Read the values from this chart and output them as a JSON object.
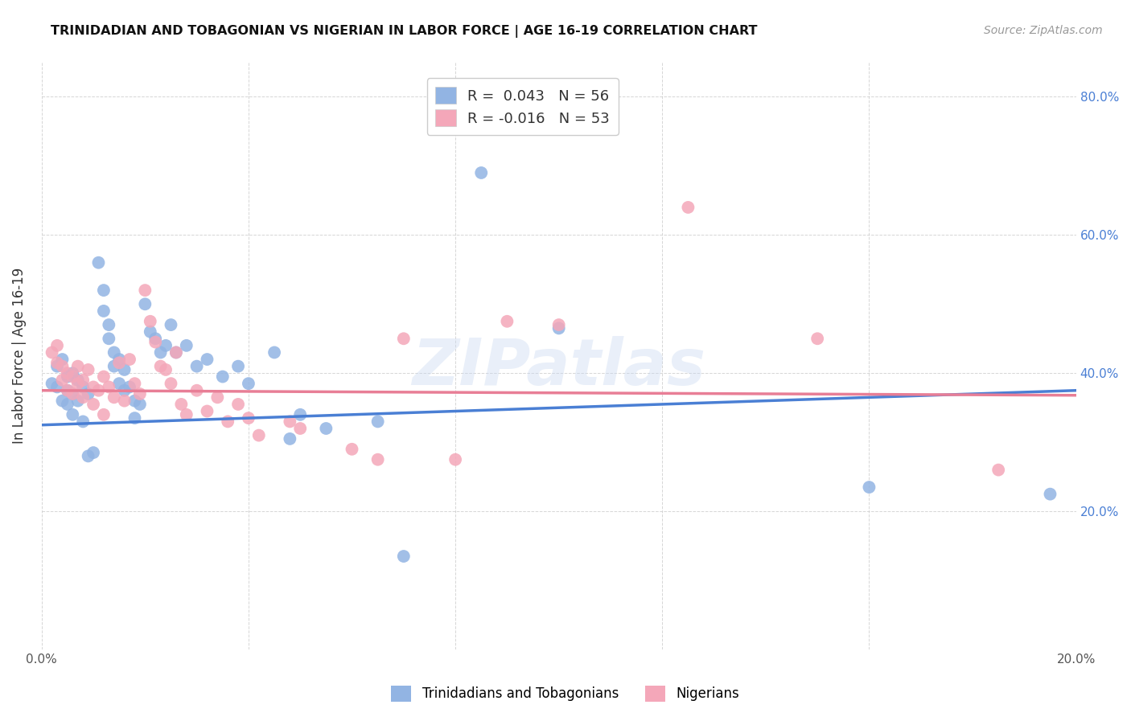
{
  "title": "TRINIDADIAN AND TOBAGONIAN VS NIGERIAN IN LABOR FORCE | AGE 16-19 CORRELATION CHART",
  "source": "Source: ZipAtlas.com",
  "ylabel": "In Labor Force | Age 16-19",
  "xlim": [
    0.0,
    0.2
  ],
  "ylim": [
    0.0,
    0.85
  ],
  "x_ticks": [
    0.0,
    0.04,
    0.08,
    0.12,
    0.16,
    0.2
  ],
  "x_tick_labels": [
    "0.0%",
    "",
    "",
    "",
    "",
    "20.0%"
  ],
  "y_ticks_right": [
    0.2,
    0.4,
    0.6,
    0.8
  ],
  "y_tick_labels_right": [
    "20.0%",
    "40.0%",
    "60.0%",
    "80.0%"
  ],
  "legend_entry1": "R =  0.043   N = 56",
  "legend_entry2": "R = -0.016   N = 53",
  "legend_label1": "Trinidadians and Tobagonians",
  "legend_label2": "Nigerians",
  "color_blue": "#92b4e3",
  "color_pink": "#f4a7b9",
  "line_color_blue": "#4a7fd4",
  "line_color_pink": "#e87e96",
  "watermark": "ZIPatlas",
  "blue_line": [
    [
      0.0,
      0.325
    ],
    [
      0.2,
      0.375
    ]
  ],
  "pink_line": [
    [
      0.0,
      0.375
    ],
    [
      0.2,
      0.368
    ]
  ],
  "blue_points": [
    [
      0.002,
      0.385
    ],
    [
      0.003,
      0.41
    ],
    [
      0.003,
      0.38
    ],
    [
      0.004,
      0.36
    ],
    [
      0.004,
      0.42
    ],
    [
      0.005,
      0.395
    ],
    [
      0.005,
      0.375
    ],
    [
      0.005,
      0.355
    ],
    [
      0.006,
      0.4
    ],
    [
      0.006,
      0.37
    ],
    [
      0.006,
      0.34
    ],
    [
      0.007,
      0.39
    ],
    [
      0.007,
      0.36
    ],
    [
      0.008,
      0.38
    ],
    [
      0.008,
      0.33
    ],
    [
      0.009,
      0.37
    ],
    [
      0.009,
      0.28
    ],
    [
      0.01,
      0.285
    ],
    [
      0.011,
      0.56
    ],
    [
      0.012,
      0.52
    ],
    [
      0.012,
      0.49
    ],
    [
      0.013,
      0.47
    ],
    [
      0.013,
      0.45
    ],
    [
      0.014,
      0.43
    ],
    [
      0.014,
      0.41
    ],
    [
      0.015,
      0.42
    ],
    [
      0.015,
      0.385
    ],
    [
      0.016,
      0.405
    ],
    [
      0.016,
      0.375
    ],
    [
      0.017,
      0.38
    ],
    [
      0.018,
      0.36
    ],
    [
      0.018,
      0.335
    ],
    [
      0.019,
      0.355
    ],
    [
      0.02,
      0.5
    ],
    [
      0.021,
      0.46
    ],
    [
      0.022,
      0.45
    ],
    [
      0.023,
      0.43
    ],
    [
      0.024,
      0.44
    ],
    [
      0.025,
      0.47
    ],
    [
      0.026,
      0.43
    ],
    [
      0.028,
      0.44
    ],
    [
      0.03,
      0.41
    ],
    [
      0.032,
      0.42
    ],
    [
      0.035,
      0.395
    ],
    [
      0.038,
      0.41
    ],
    [
      0.04,
      0.385
    ],
    [
      0.045,
      0.43
    ],
    [
      0.048,
      0.305
    ],
    [
      0.05,
      0.34
    ],
    [
      0.055,
      0.32
    ],
    [
      0.065,
      0.33
    ],
    [
      0.07,
      0.135
    ],
    [
      0.085,
      0.69
    ],
    [
      0.1,
      0.465
    ],
    [
      0.16,
      0.235
    ],
    [
      0.195,
      0.225
    ]
  ],
  "pink_points": [
    [
      0.002,
      0.43
    ],
    [
      0.003,
      0.44
    ],
    [
      0.003,
      0.415
    ],
    [
      0.004,
      0.39
    ],
    [
      0.004,
      0.41
    ],
    [
      0.005,
      0.4
    ],
    [
      0.005,
      0.375
    ],
    [
      0.006,
      0.395
    ],
    [
      0.006,
      0.37
    ],
    [
      0.007,
      0.41
    ],
    [
      0.007,
      0.385
    ],
    [
      0.008,
      0.365
    ],
    [
      0.008,
      0.39
    ],
    [
      0.009,
      0.405
    ],
    [
      0.01,
      0.38
    ],
    [
      0.01,
      0.355
    ],
    [
      0.011,
      0.375
    ],
    [
      0.012,
      0.34
    ],
    [
      0.012,
      0.395
    ],
    [
      0.013,
      0.38
    ],
    [
      0.014,
      0.365
    ],
    [
      0.015,
      0.415
    ],
    [
      0.016,
      0.36
    ],
    [
      0.017,
      0.42
    ],
    [
      0.018,
      0.385
    ],
    [
      0.019,
      0.37
    ],
    [
      0.02,
      0.52
    ],
    [
      0.021,
      0.475
    ],
    [
      0.022,
      0.445
    ],
    [
      0.023,
      0.41
    ],
    [
      0.024,
      0.405
    ],
    [
      0.025,
      0.385
    ],
    [
      0.026,
      0.43
    ],
    [
      0.027,
      0.355
    ],
    [
      0.028,
      0.34
    ],
    [
      0.03,
      0.375
    ],
    [
      0.032,
      0.345
    ],
    [
      0.034,
      0.365
    ],
    [
      0.036,
      0.33
    ],
    [
      0.038,
      0.355
    ],
    [
      0.04,
      0.335
    ],
    [
      0.042,
      0.31
    ],
    [
      0.048,
      0.33
    ],
    [
      0.05,
      0.32
    ],
    [
      0.06,
      0.29
    ],
    [
      0.065,
      0.275
    ],
    [
      0.07,
      0.45
    ],
    [
      0.08,
      0.275
    ],
    [
      0.09,
      0.475
    ],
    [
      0.1,
      0.47
    ],
    [
      0.125,
      0.64
    ],
    [
      0.15,
      0.45
    ],
    [
      0.185,
      0.26
    ]
  ]
}
